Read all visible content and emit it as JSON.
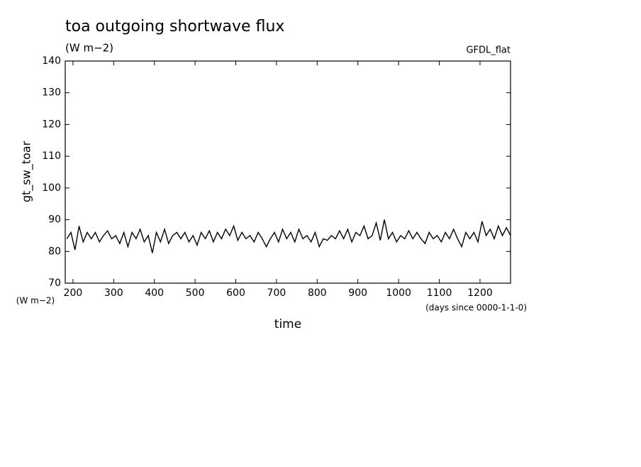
{
  "chart_data": {
    "type": "line",
    "title": "toa outgoing shortwave flux",
    "units": "(W m−2)",
    "source": "GFDL_flat",
    "ylabel": "gt_sw_toar",
    "y_units": "(W m−2)",
    "xlabel": "time",
    "x_units": "(days since 0000-1-1-0)",
    "color": "#000000",
    "x": [
      185,
      195,
      205,
      215,
      225,
      235,
      245,
      255,
      265,
      275,
      285,
      295,
      305,
      315,
      325,
      335,
      345,
      355,
      365,
      375,
      385,
      395,
      405,
      415,
      425,
      435,
      445,
      455,
      465,
      475,
      485,
      495,
      505,
      515,
      525,
      535,
      545,
      555,
      565,
      575,
      585,
      595,
      605,
      615,
      625,
      635,
      645,
      655,
      665,
      675,
      685,
      695,
      705,
      715,
      725,
      735,
      745,
      755,
      765,
      775,
      785,
      795,
      805,
      815,
      825,
      835,
      845,
      855,
      865,
      875,
      885,
      895,
      905,
      915,
      925,
      935,
      945,
      955,
      965,
      975,
      985,
      995,
      1005,
      1015,
      1025,
      1035,
      1045,
      1055,
      1065,
      1075,
      1085,
      1095,
      1105,
      1115,
      1125,
      1135,
      1145,
      1155,
      1165,
      1175,
      1185,
      1195,
      1205,
      1215,
      1225,
      1235,
      1245,
      1255,
      1265,
      1275
    ],
    "values": [
      84,
      86,
      80.5,
      88,
      83,
      86,
      84,
      86,
      83,
      85,
      86.5,
      84,
      85,
      82.5,
      86,
      81.5,
      86,
      84,
      87,
      83,
      85,
      79.5,
      86,
      83,
      87,
      82.5,
      85,
      86,
      84,
      86,
      83,
      85,
      82,
      86,
      84,
      86.5,
      83,
      86,
      84,
      87,
      85,
      88,
      83.5,
      86,
      84,
      85,
      83,
      86,
      84,
      81.5,
      84,
      86,
      83,
      87,
      84,
      86,
      83,
      87,
      84,
      85,
      83,
      86,
      81.5,
      84,
      83.5,
      85,
      84,
      86.5,
      84,
      87,
      83,
      86,
      85,
      88,
      84,
      85,
      89,
      83.5,
      90,
      84,
      86,
      83,
      85,
      84,
      86.5,
      84,
      86,
      84,
      82.5,
      86,
      84,
      85,
      83,
      86,
      84,
      87,
      84,
      81.5,
      86,
      84,
      86,
      83,
      89.5,
      85,
      87,
      84,
      88,
      85,
      87.5,
      85
    ],
    "xlim": [
      181,
      1275
    ],
    "ylim": [
      70,
      140
    ],
    "xticks": [
      200,
      300,
      400,
      500,
      600,
      700,
      800,
      900,
      1000,
      1100,
      1200
    ],
    "yticks": [
      70,
      80,
      90,
      100,
      110,
      120,
      130,
      140
    ]
  }
}
